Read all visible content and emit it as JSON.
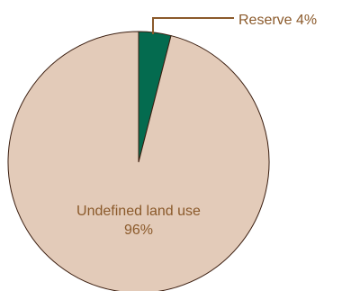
{
  "chart_data": {
    "type": "pie",
    "title": "",
    "slices": [
      {
        "label": "Reserve",
        "value": 4,
        "display": "Reserve 4%",
        "color": "#046b4f"
      },
      {
        "label": "Undefined land use",
        "value": 96,
        "display_line1": "Undefined land use",
        "display_line2": "96%",
        "color": "#e3cbb9"
      }
    ],
    "border_color": "#3b1e10",
    "leader_color": "#8b5a2b"
  }
}
